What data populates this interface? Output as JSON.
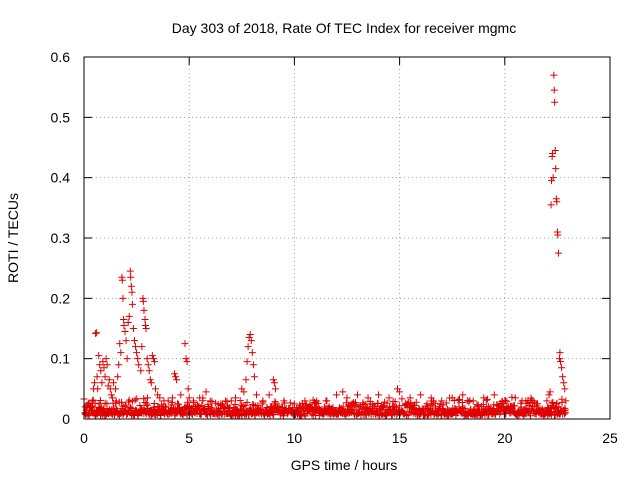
{
  "chart_data": {
    "type": "scatter",
    "title": "Day 303 of 2018, Rate Of TEC Index for receiver mgmc",
    "xlabel": "GPS time / hours",
    "ylabel": "ROTI / TECUs",
    "xlim": [
      0,
      25
    ],
    "ylim": [
      0,
      0.6
    ],
    "xticks": [
      0,
      5,
      10,
      15,
      20,
      25
    ],
    "xtick_labels": [
      "0",
      "5",
      "10",
      "15",
      "20",
      "25"
    ],
    "yticks": [
      0,
      0.1,
      0.2,
      0.3,
      0.4,
      0.5,
      0.6
    ],
    "ytick_labels": [
      "0",
      "0.1",
      "0.2",
      "0.3",
      "0.4",
      "0.5",
      "0.6"
    ],
    "grid": true,
    "marker": "plus",
    "color": "#e00000",
    "baseline_band": {
      "x_range": [
        0,
        22.9
      ],
      "typical_y_range": [
        0.005,
        0.03
      ]
    },
    "points": [
      [
        0.05,
        0.02
      ],
      [
        0.1,
        0.015
      ],
      [
        0.2,
        0.025
      ],
      [
        0.3,
        0.018
      ],
      [
        0.4,
        0.03
      ],
      [
        0.45,
        0.05
      ],
      [
        0.5,
        0.06
      ],
      [
        0.55,
        0.142
      ],
      [
        0.6,
        0.143
      ],
      [
        0.62,
        0.07
      ],
      [
        0.65,
        0.05
      ],
      [
        0.7,
        0.105
      ],
      [
        0.75,
        0.09
      ],
      [
        0.8,
        0.08
      ],
      [
        0.85,
        0.06
      ],
      [
        0.9,
        0.095
      ],
      [
        0.95,
        0.085
      ],
      [
        1.0,
        0.07
      ],
      [
        1.05,
        0.1
      ],
      [
        1.1,
        0.09
      ],
      [
        1.15,
        0.055
      ],
      [
        1.2,
        0.065
      ],
      [
        1.25,
        0.05
      ],
      [
        1.3,
        0.04
      ],
      [
        1.35,
        0.035
      ],
      [
        1.4,
        0.06
      ],
      [
        1.5,
        0.05
      ],
      [
        1.6,
        0.07
      ],
      [
        1.65,
        0.09
      ],
      [
        1.7,
        0.125
      ],
      [
        1.75,
        0.11
      ],
      [
        1.8,
        0.235
      ],
      [
        1.82,
        0.23
      ],
      [
        1.85,
        0.2
      ],
      [
        1.88,
        0.165
      ],
      [
        1.9,
        0.155
      ],
      [
        1.95,
        0.145
      ],
      [
        2.0,
        0.13
      ],
      [
        2.05,
        0.1
      ],
      [
        2.1,
        0.16
      ],
      [
        2.15,
        0.17
      ],
      [
        2.2,
        0.245
      ],
      [
        2.22,
        0.235
      ],
      [
        2.25,
        0.22
      ],
      [
        2.28,
        0.21
      ],
      [
        2.3,
        0.19
      ],
      [
        2.35,
        0.15
      ],
      [
        2.4,
        0.13
      ],
      [
        2.45,
        0.12
      ],
      [
        2.5,
        0.11
      ],
      [
        2.55,
        0.1
      ],
      [
        2.6,
        0.09
      ],
      [
        2.7,
        0.08
      ],
      [
        2.75,
        0.12
      ],
      [
        2.8,
        0.2
      ],
      [
        2.82,
        0.195
      ],
      [
        2.85,
        0.18
      ],
      [
        2.9,
        0.165
      ],
      [
        2.92,
        0.155
      ],
      [
        2.95,
        0.15
      ],
      [
        3.0,
        0.1
      ],
      [
        3.05,
        0.09
      ],
      [
        3.1,
        0.08
      ],
      [
        3.15,
        0.065
      ],
      [
        3.2,
        0.06
      ],
      [
        3.25,
        0.105
      ],
      [
        3.3,
        0.1
      ],
      [
        3.35,
        0.095
      ],
      [
        3.4,
        0.05
      ],
      [
        3.5,
        0.04
      ],
      [
        3.6,
        0.035
      ],
      [
        3.8,
        0.03
      ],
      [
        4.0,
        0.03
      ],
      [
        4.2,
        0.035
      ],
      [
        4.3,
        0.075
      ],
      [
        4.35,
        0.07
      ],
      [
        4.4,
        0.065
      ],
      [
        4.6,
        0.04
      ],
      [
        4.8,
        0.125
      ],
      [
        4.85,
        0.1
      ],
      [
        4.9,
        0.095
      ],
      [
        4.95,
        0.05
      ],
      [
        5.0,
        0.035
      ],
      [
        5.2,
        0.03
      ],
      [
        5.5,
        0.035
      ],
      [
        5.8,
        0.045
      ],
      [
        6.0,
        0.03
      ],
      [
        6.5,
        0.025
      ],
      [
        7.0,
        0.03
      ],
      [
        7.2,
        0.035
      ],
      [
        7.5,
        0.05
      ],
      [
        7.6,
        0.045
      ],
      [
        7.7,
        0.065
      ],
      [
        7.75,
        0.095
      ],
      [
        7.8,
        0.12
      ],
      [
        7.85,
        0.135
      ],
      [
        7.9,
        0.14
      ],
      [
        7.95,
        0.13
      ],
      [
        8.0,
        0.11
      ],
      [
        8.05,
        0.09
      ],
      [
        8.1,
        0.07
      ],
      [
        8.2,
        0.04
      ],
      [
        8.5,
        0.03
      ],
      [
        8.8,
        0.04
      ],
      [
        9.0,
        0.065
      ],
      [
        9.05,
        0.06
      ],
      [
        9.1,
        0.05
      ],
      [
        9.5,
        0.03
      ],
      [
        10.0,
        0.025
      ],
      [
        10.5,
        0.03
      ],
      [
        11.0,
        0.025
      ],
      [
        11.5,
        0.03
      ],
      [
        12.0,
        0.04
      ],
      [
        12.3,
        0.045
      ],
      [
        12.5,
        0.035
      ],
      [
        13.0,
        0.04
      ],
      [
        13.5,
        0.035
      ],
      [
        14.0,
        0.04
      ],
      [
        14.5,
        0.035
      ],
      [
        14.9,
        0.05
      ],
      [
        15.0,
        0.045
      ],
      [
        15.5,
        0.035
      ],
      [
        16.0,
        0.04
      ],
      [
        16.5,
        0.035
      ],
      [
        17.0,
        0.03
      ],
      [
        17.5,
        0.035
      ],
      [
        18.0,
        0.04
      ],
      [
        18.5,
        0.03
      ],
      [
        19.0,
        0.035
      ],
      [
        19.5,
        0.04
      ],
      [
        20.0,
        0.03
      ],
      [
        20.5,
        0.035
      ],
      [
        21.0,
        0.03
      ],
      [
        21.5,
        0.025
      ],
      [
        22.0,
        0.03
      ],
      [
        22.1,
        0.04
      ],
      [
        22.15,
        0.045
      ],
      [
        22.2,
        0.355
      ],
      [
        22.22,
        0.395
      ],
      [
        22.25,
        0.435
      ],
      [
        22.27,
        0.44
      ],
      [
        22.3,
        0.4
      ],
      [
        22.33,
        0.57
      ],
      [
        22.35,
        0.545
      ],
      [
        22.37,
        0.525
      ],
      [
        22.4,
        0.445
      ],
      [
        22.42,
        0.415
      ],
      [
        22.45,
        0.365
      ],
      [
        22.47,
        0.36
      ],
      [
        22.5,
        0.31
      ],
      [
        22.52,
        0.305
      ],
      [
        22.55,
        0.275
      ],
      [
        22.6,
        0.1
      ],
      [
        22.62,
        0.11
      ],
      [
        22.65,
        0.095
      ],
      [
        22.7,
        0.085
      ],
      [
        22.75,
        0.07
      ],
      [
        22.8,
        0.06
      ],
      [
        22.85,
        0.05
      ],
      [
        22.9,
        0.03
      ]
    ]
  }
}
